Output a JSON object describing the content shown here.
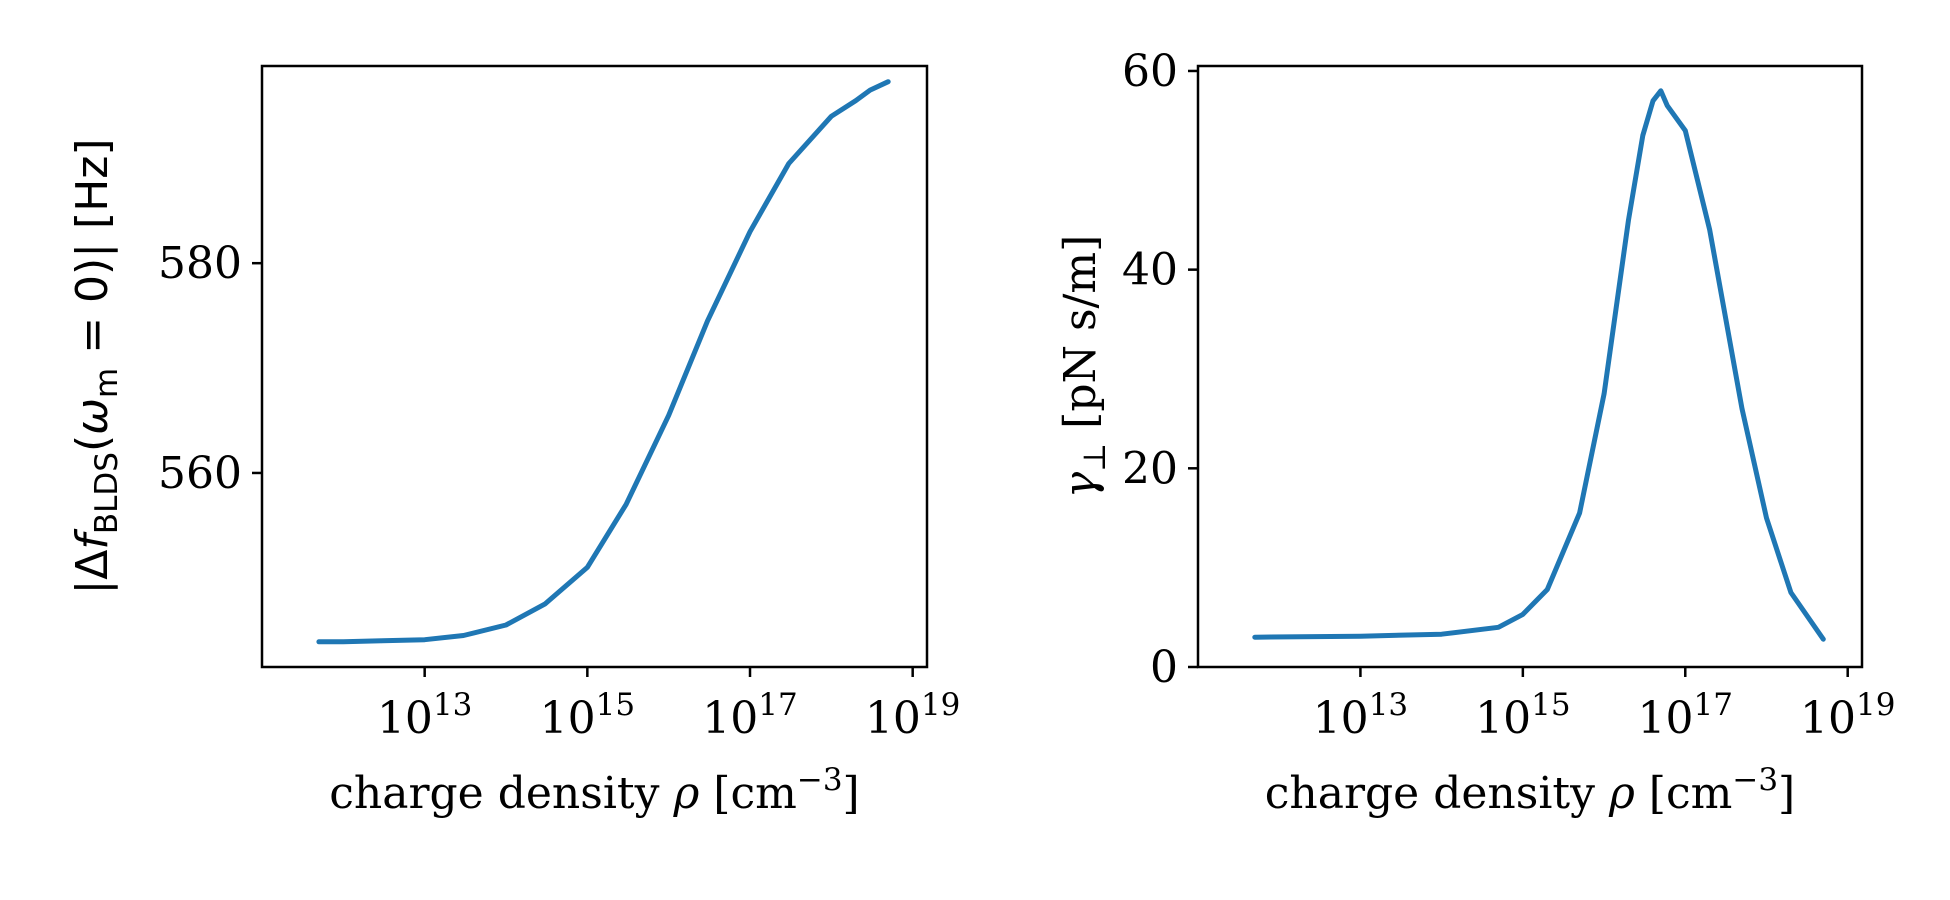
{
  "chart_data": [
    {
      "type": "line",
      "xscale": "log",
      "xlim": [
        100000000000.0,
        1.5e+19
      ],
      "ylim": [
        541.5,
        598.8
      ],
      "xticks": [
        10000000000000.0,
        1000000000000000.0,
        1e+17,
        1e+19
      ],
      "xtick_labels": [
        {
          "base": "10",
          "exp": "13"
        },
        {
          "base": "10",
          "exp": "15"
        },
        {
          "base": "10",
          "exp": "17"
        },
        {
          "base": "10",
          "exp": "19"
        }
      ],
      "yticks": [
        560,
        580
      ],
      "ytick_labels": [
        "560",
        "580"
      ],
      "xlabel": {
        "pre": "charge density ",
        "var": "ρ",
        "post": " [cm",
        "exp": "−3",
        "end": "]"
      },
      "ylabel": {
        "p1": "|Δ",
        "f": "f",
        "sub": "BLDS",
        "p2": "(",
        "omega": "ω",
        "osub": "m",
        "p3": " = 0)| [Hz]"
      },
      "grid": false,
      "legend": "none",
      "series": [
        {
          "color": "#1f77b4",
          "x": [
            500000000000.0,
            1000000000000.0,
            3000000000000.0,
            10000000000000.0,
            30000000000000.0,
            100000000000000.0,
            300000000000000.0,
            1000000000000000.0,
            3000000000000000.0,
            1e+16,
            3e+16,
            1e+17,
            3e+17,
            1e+18,
            2e+18,
            3e+18,
            5e+18
          ],
          "y": [
            543.9,
            543.9,
            544.0,
            544.1,
            544.5,
            545.5,
            547.5,
            551.0,
            557.0,
            565.5,
            574.5,
            583.0,
            589.5,
            594.0,
            595.5,
            596.5,
            597.3
          ]
        }
      ]
    },
    {
      "type": "line",
      "xscale": "log",
      "xlim": [
        100000000000.0,
        1.5e+19
      ],
      "ylim": [
        0,
        60.5
      ],
      "xticks": [
        10000000000000.0,
        1000000000000000.0,
        1e+17,
        1e+19
      ],
      "xtick_labels": [
        {
          "base": "10",
          "exp": "13"
        },
        {
          "base": "10",
          "exp": "15"
        },
        {
          "base": "10",
          "exp": "17"
        },
        {
          "base": "10",
          "exp": "19"
        }
      ],
      "yticks": [
        0,
        20,
        40,
        60
      ],
      "ytick_labels": [
        "0",
        "20",
        "40",
        "60"
      ],
      "xlabel": {
        "pre": "charge density ",
        "var": "ρ",
        "post": " [cm",
        "exp": "−3",
        "end": "]"
      },
      "ylabel": {
        "var": "γ",
        "sub": "⊥",
        "rest": " [pN s/m]"
      },
      "grid": false,
      "legend": "none",
      "series": [
        {
          "color": "#1f77b4",
          "x": [
            500000000000.0,
            10000000000000.0,
            100000000000000.0,
            500000000000000.0,
            1000000000000000.0,
            2000000000000000.0,
            5000000000000000.0,
            1e+16,
            2e+16,
            3e+16,
            4e+16,
            5e+16,
            6e+16,
            1e+17,
            2e+17,
            5e+17,
            1e+18,
            2e+18,
            5e+18
          ],
          "y": [
            3.0,
            3.1,
            3.3,
            4.0,
            5.3,
            7.8,
            15.5,
            27.5,
            45.0,
            53.5,
            57.0,
            58.0,
            56.5,
            54.0,
            44.0,
            26.0,
            15.0,
            7.5,
            2.8
          ]
        }
      ]
    }
  ]
}
